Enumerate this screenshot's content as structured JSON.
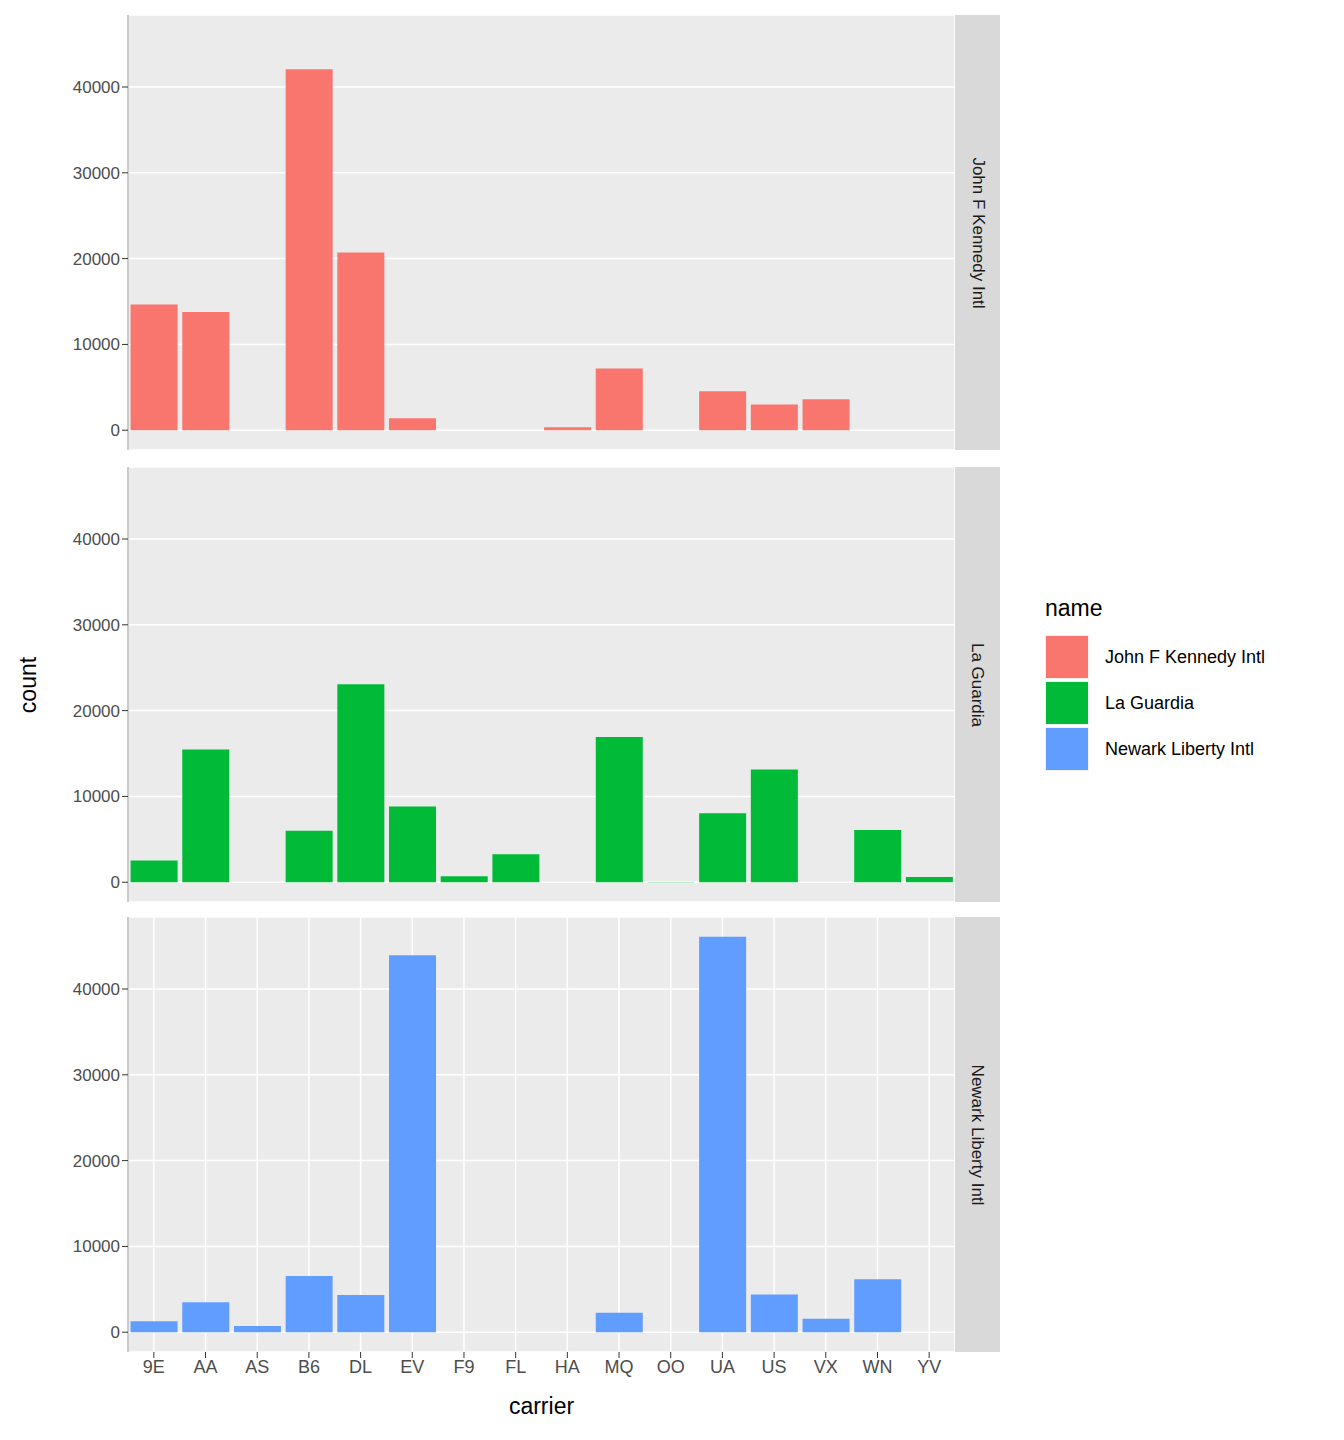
{
  "chart_data": {
    "type": "bar",
    "x_label": "carrier",
    "y_label": "count",
    "legend_title": "name",
    "legend": "right",
    "grid": true,
    "categories": [
      "9E",
      "AA",
      "AS",
      "B6",
      "DL",
      "EV",
      "F9",
      "FL",
      "HA",
      "MQ",
      "OO",
      "UA",
      "US",
      "VX",
      "WN",
      "YV"
    ],
    "ylim": [
      -2304,
      48391
    ],
    "yticks": [
      0,
      10000,
      20000,
      30000,
      40000
    ],
    "series": [
      {
        "name": "John F Kennedy Intl",
        "color": "#F8766D",
        "values": [
          14651,
          13783,
          null,
          42076,
          20701,
          1408,
          null,
          null,
          342,
          7193,
          null,
          4534,
          2995,
          3596,
          null,
          null
        ]
      },
      {
        "name": "La Guardia",
        "color": "#00BA38",
        "values": [
          2541,
          15459,
          null,
          6002,
          23067,
          8826,
          685,
          3260,
          null,
          16928,
          26,
          8044,
          13136,
          null,
          6087,
          601
        ]
      },
      {
        "name": "Newark Liberty Intl",
        "color": "#619CFF",
        "values": [
          1268,
          3487,
          714,
          6557,
          4342,
          43939,
          null,
          null,
          null,
          2276,
          6,
          46087,
          4405,
          1566,
          6188,
          null
        ]
      }
    ]
  }
}
